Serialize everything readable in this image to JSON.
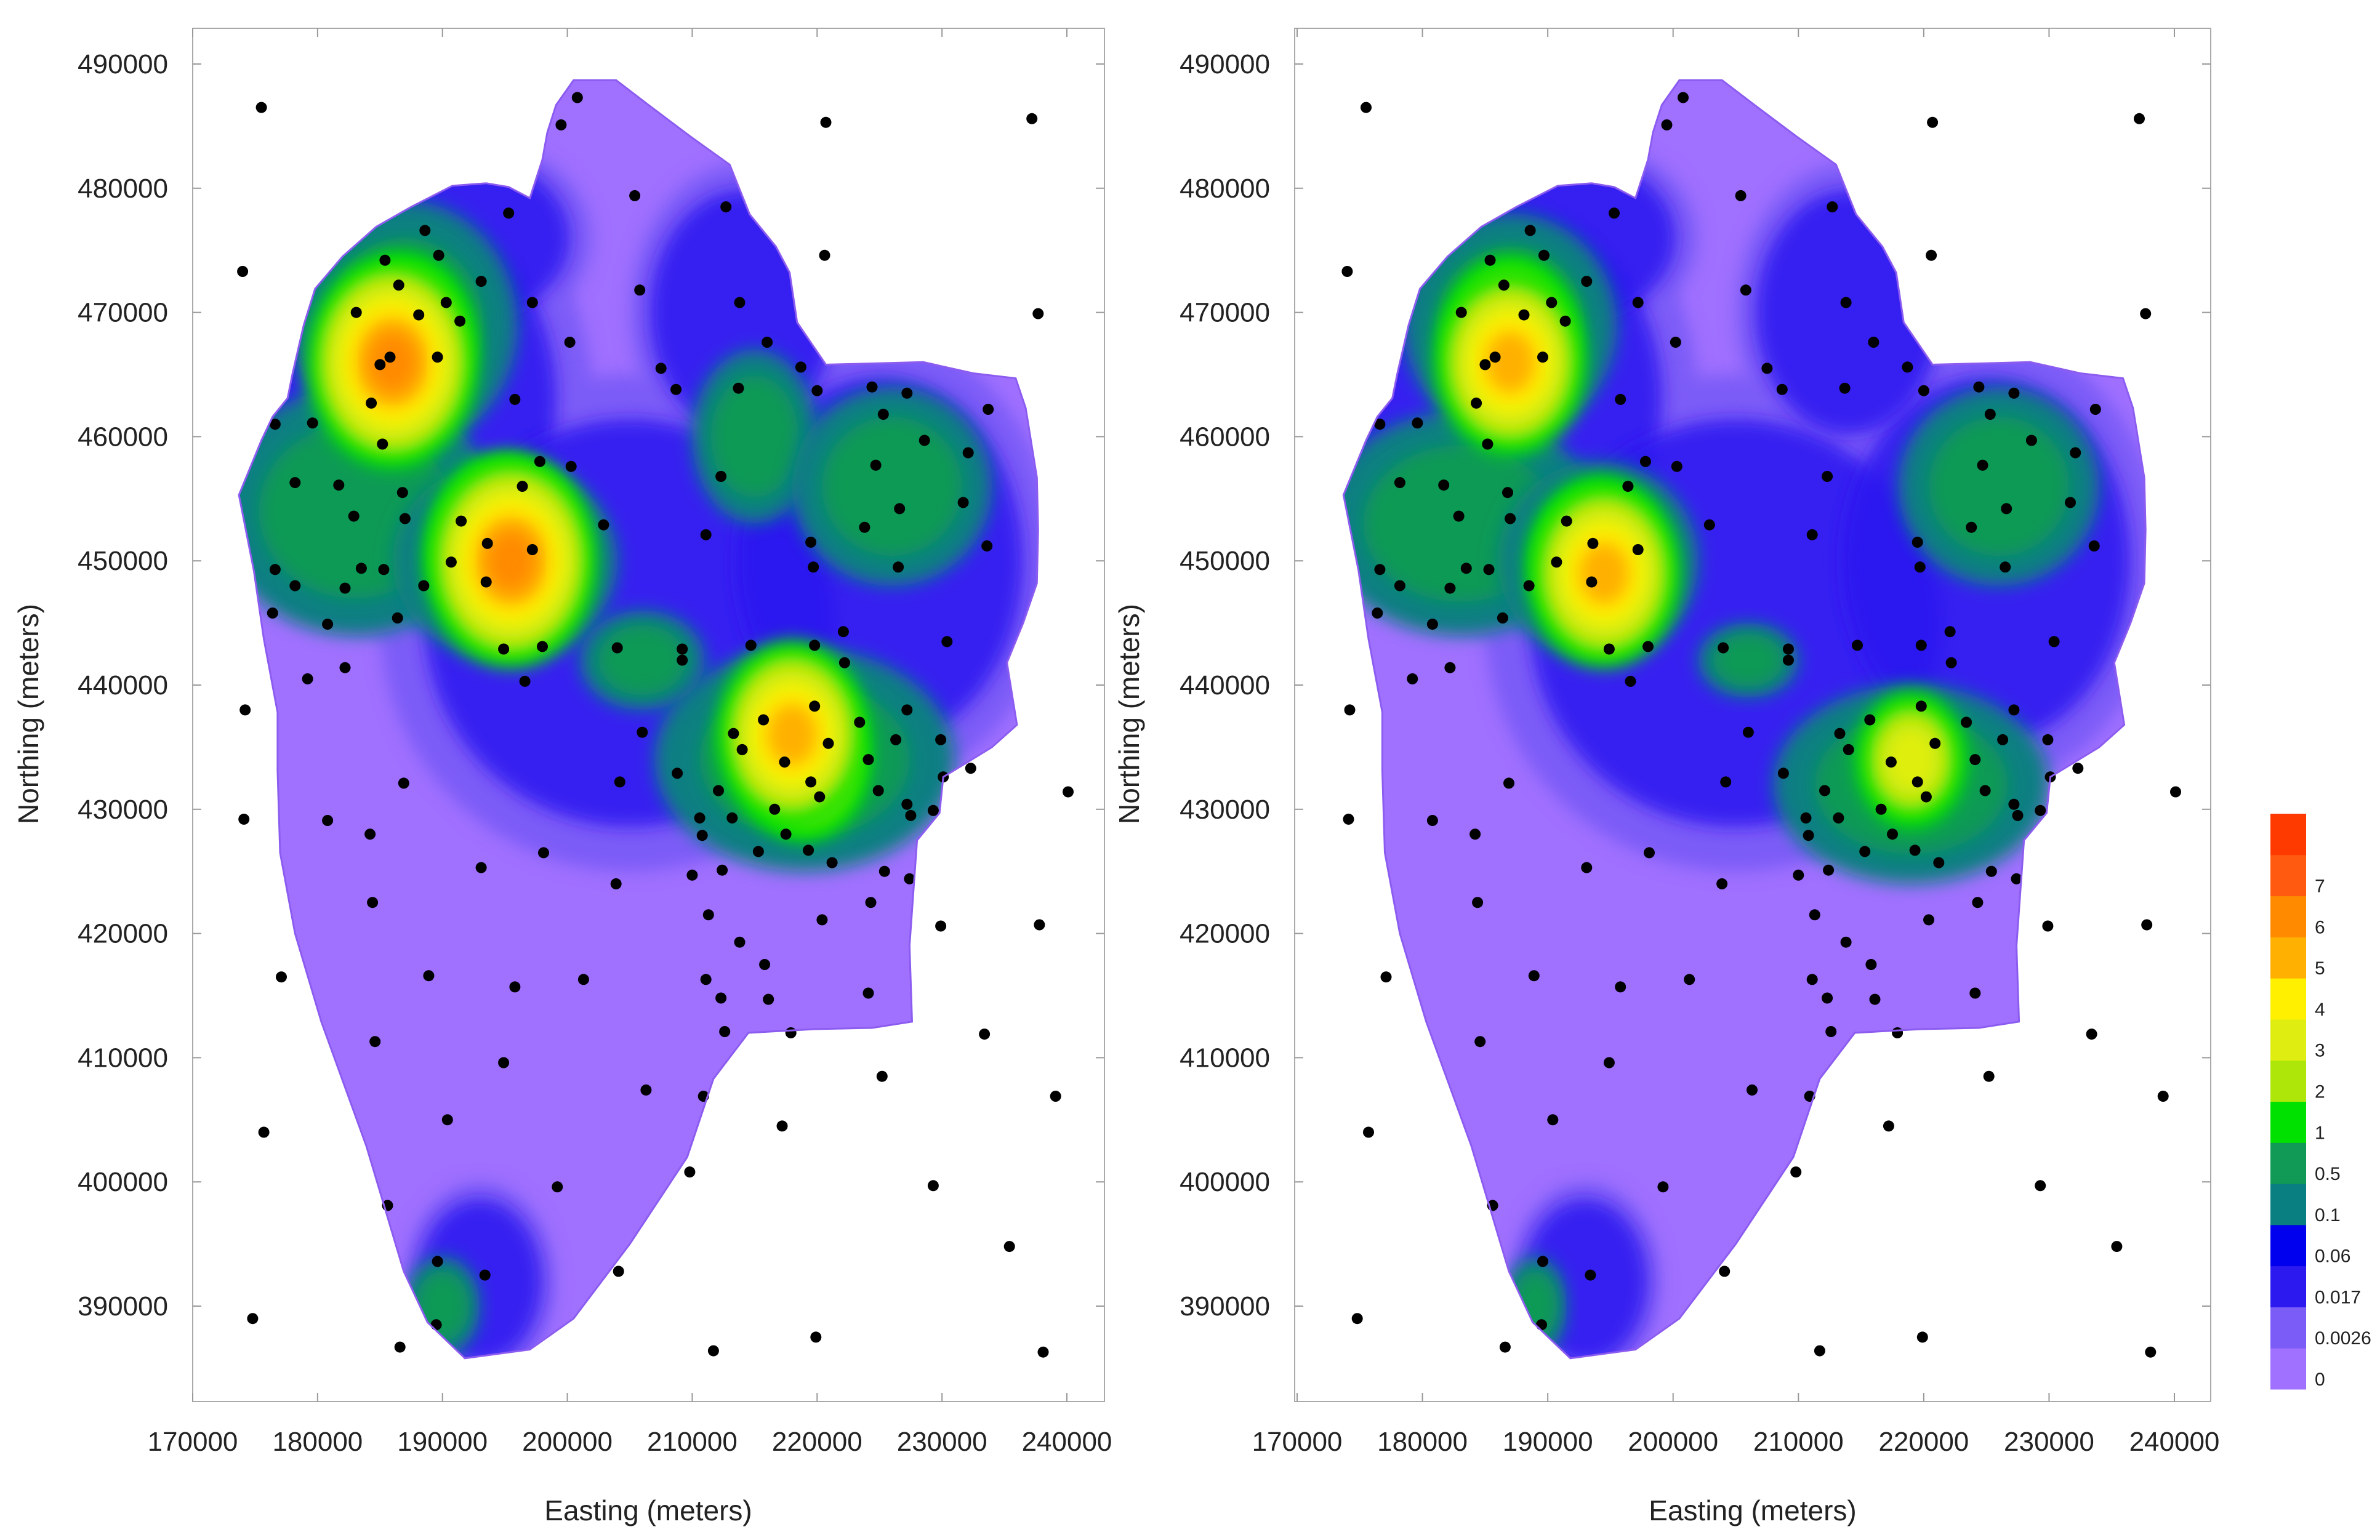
{
  "chart_data": [
    {
      "type": "contour",
      "panel": "left",
      "xlabel": "Easting (meters)",
      "ylabel": "Northing (meters)",
      "xlim": [
        170000,
        240000
      ],
      "ylim": [
        385000,
        490000
      ],
      "xticks": [
        170000,
        180000,
        190000,
        200000,
        210000,
        220000,
        230000,
        240000
      ],
      "yticks": [
        390000,
        400000,
        410000,
        420000,
        430000,
        440000,
        450000,
        460000,
        470000,
        480000,
        490000
      ],
      "hotspots": [
        {
          "x": 187000,
          "y": 468000,
          "level": 3
        },
        {
          "x": 195000,
          "y": 451000,
          "level": 4
        },
        {
          "x": 219000,
          "y": 434000,
          "level": 3
        },
        {
          "x": 186000,
          "y": 466000,
          "level": 5
        },
        {
          "x": 195500,
          "y": 450000,
          "level": 5
        },
        {
          "x": 218000,
          "y": 436000,
          "level": 4
        }
      ],
      "greens": [
        {
          "x": 187000,
          "y": 469000,
          "rx": 9000,
          "ry": 10000
        },
        {
          "x": 183000,
          "y": 454000,
          "rx": 11000,
          "ry": 10000
        },
        {
          "x": 195000,
          "y": 450000,
          "rx": 9000,
          "ry": 8000
        },
        {
          "x": 215000,
          "y": 460000,
          "rx": 5000,
          "ry": 7000
        },
        {
          "x": 226000,
          "y": 456000,
          "rx": 8000,
          "ry": 8000
        },
        {
          "x": 219000,
          "y": 434000,
          "rx": 12000,
          "ry": 9000
        },
        {
          "x": 206000,
          "y": 442000,
          "rx": 5000,
          "ry": 4000
        },
        {
          "x": 190000,
          "y": 390000,
          "rx": 3000,
          "ry": 4000
        }
      ]
    },
    {
      "type": "contour",
      "panel": "right",
      "xlabel": "Easting (meters)",
      "ylabel": "Northing (meters)",
      "xlim": [
        170000,
        240000
      ],
      "ylim": [
        385000,
        490000
      ],
      "xticks": [
        170000,
        180000,
        190000,
        200000,
        210000,
        220000,
        230000,
        240000
      ],
      "yticks": [
        390000,
        400000,
        410000,
        420000,
        430000,
        440000,
        450000,
        460000,
        470000,
        480000,
        490000
      ],
      "hotspots": [
        {
          "x": 187000,
          "y": 468000,
          "level": 3
        },
        {
          "x": 194000,
          "y": 450000,
          "level": 3
        },
        {
          "x": 219000,
          "y": 434000,
          "level": 2
        },
        {
          "x": 187000,
          "y": 466000,
          "level": 4
        },
        {
          "x": 194500,
          "y": 449000,
          "level": 4
        }
      ],
      "greens": [
        {
          "x": 187000,
          "y": 469000,
          "rx": 8500,
          "ry": 9000
        },
        {
          "x": 183000,
          "y": 453000,
          "rx": 11000,
          "ry": 9000
        },
        {
          "x": 194000,
          "y": 450000,
          "rx": 8000,
          "ry": 8000
        },
        {
          "x": 226000,
          "y": 456000,
          "rx": 8000,
          "ry": 8000
        },
        {
          "x": 219000,
          "y": 432000,
          "rx": 11000,
          "ry": 8000
        },
        {
          "x": 206000,
          "y": 442000,
          "rx": 4000,
          "ry": 3000
        },
        {
          "x": 189000,
          "y": 390000,
          "rx": 2500,
          "ry": 4000
        }
      ]
    }
  ],
  "legend": {
    "levels": [
      "0",
      "0.0026",
      "0.017",
      "0.06",
      "0.1",
      "0.5",
      "1",
      "2",
      "3",
      "4",
      "5",
      "6",
      "7"
    ],
    "colors": [
      "#a070ff",
      "#7b5cf7",
      "#2b19f0",
      "#0000ee",
      "#0a7f82",
      "#109a55",
      "#00e100",
      "#aee60a",
      "#dfee10",
      "#fff000",
      "#ffb000",
      "#ff8a00",
      "#ff5a10",
      "#ff3a00"
    ]
  },
  "stations": [
    [
      175500,
      486500
    ],
    [
      200800,
      487300
    ],
    [
      199500,
      485100
    ],
    [
      220700,
      485300
    ],
    [
      237200,
      485600
    ],
    [
      205400,
      479400
    ],
    [
      212700,
      478500
    ],
    [
      195300,
      478000
    ],
    [
      188600,
      476600
    ],
    [
      174000,
      473300
    ],
    [
      220600,
      474600
    ],
    [
      185400,
      474200
    ],
    [
      189700,
      474600
    ],
    [
      193100,
      472500
    ],
    [
      186500,
      472200
    ],
    [
      190300,
      470800
    ],
    [
      197200,
      470800
    ],
    [
      205800,
      471800
    ],
    [
      213800,
      470800
    ],
    [
      188100,
      469800
    ],
    [
      191400,
      469300
    ],
    [
      183100,
      470000
    ],
    [
      237700,
      469900
    ],
    [
      185800,
      466400
    ],
    [
      189600,
      466400
    ],
    [
      185000,
      465800
    ],
    [
      200200,
      467600
    ],
    [
      207500,
      465500
    ],
    [
      216000,
      467600
    ],
    [
      218700,
      465600
    ],
    [
      224400,
      464000
    ],
    [
      227200,
      463500
    ],
    [
      233700,
      462200
    ],
    [
      184300,
      462700
    ],
    [
      195800,
      463000
    ],
    [
      176600,
      461000
    ],
    [
      179600,
      461100
    ],
    [
      208700,
      463800
    ],
    [
      213700,
      463900
    ],
    [
      220000,
      463700
    ],
    [
      225300,
      461800
    ],
    [
      228600,
      459700
    ],
    [
      232100,
      458700
    ],
    [
      185200,
      459400
    ],
    [
      197800,
      458000
    ],
    [
      200300,
      457600
    ],
    [
      212300,
      456800
    ],
    [
      178200,
      456300
    ],
    [
      181700,
      456100
    ],
    [
      186800,
      455500
    ],
    [
      196400,
      456000
    ],
    [
      224700,
      457700
    ],
    [
      226600,
      454200
    ],
    [
      231700,
      454700
    ],
    [
      233600,
      451200
    ],
    [
      182900,
      453600
    ],
    [
      187000,
      453400
    ],
    [
      191500,
      453200
    ],
    [
      202900,
      452900
    ],
    [
      219500,
      451500
    ],
    [
      223800,
      452700
    ],
    [
      211100,
      452100
    ],
    [
      193600,
      451400
    ],
    [
      197200,
      450900
    ],
    [
      176600,
      449300
    ],
    [
      183500,
      449400
    ],
    [
      185300,
      449300
    ],
    [
      190700,
      449900
    ],
    [
      193500,
      448300
    ],
    [
      219700,
      449500
    ],
    [
      226500,
      449500
    ],
    [
      178200,
      448000
    ],
    [
      182200,
      447800
    ],
    [
      188500,
      448000
    ],
    [
      176400,
      445800
    ],
    [
      186400,
      445400
    ],
    [
      180800,
      444900
    ],
    [
      222100,
      444300
    ],
    [
      198000,
      443100
    ],
    [
      194900,
      442900
    ],
    [
      209200,
      442900
    ],
    [
      219800,
      443200
    ],
    [
      214700,
      443200
    ],
    [
      204000,
      443000
    ],
    [
      230400,
      443500
    ],
    [
      182200,
      441400
    ],
    [
      209200,
      442000
    ],
    [
      222200,
      441800
    ],
    [
      196600,
      440300
    ],
    [
      179200,
      440500
    ],
    [
      174200,
      438000
    ],
    [
      219800,
      438300
    ],
    [
      227200,
      438000
    ],
    [
      215700,
      437200
    ],
    [
      223400,
      437000
    ],
    [
      213300,
      436100
    ],
    [
      206000,
      436200
    ],
    [
      220900,
      435300
    ],
    [
      226300,
      435600
    ],
    [
      229900,
      435600
    ],
    [
      232300,
      433300
    ],
    [
      214000,
      434800
    ],
    [
      217400,
      433800
    ],
    [
      224100,
      434000
    ],
    [
      208800,
      432900
    ],
    [
      219500,
      432200
    ],
    [
      230100,
      432600
    ],
    [
      204200,
      432200
    ],
    [
      212100,
      431500
    ],
    [
      186900,
      432100
    ],
    [
      240100,
      431400
    ],
    [
      220200,
      431000
    ],
    [
      227200,
      430400
    ],
    [
      224900,
      431500
    ],
    [
      216600,
      430000
    ],
    [
      210600,
      429300
    ],
    [
      174100,
      429200
    ],
    [
      180800,
      429100
    ],
    [
      213200,
      429300
    ],
    [
      227500,
      429500
    ],
    [
      229300,
      429900
    ],
    [
      217500,
      428000
    ],
    [
      210800,
      427900
    ],
    [
      184200,
      428000
    ],
    [
      198100,
      426500
    ],
    [
      215300,
      426600
    ],
    [
      219300,
      426700
    ],
    [
      221200,
      425700
    ],
    [
      193100,
      425300
    ],
    [
      212400,
      425100
    ],
    [
      225400,
      425000
    ],
    [
      210000,
      424700
    ],
    [
      227400,
      424400
    ],
    [
      203900,
      424000
    ],
    [
      224300,
      422500
    ],
    [
      184400,
      422500
    ],
    [
      211300,
      421500
    ],
    [
      220400,
      421100
    ],
    [
      229900,
      420600
    ],
    [
      237800,
      420700
    ],
    [
      213800,
      419300
    ],
    [
      215800,
      417500
    ],
    [
      188900,
      416600
    ],
    [
      201300,
      416300
    ],
    [
      211100,
      416300
    ],
    [
      177100,
      416500
    ],
    [
      212300,
      414800
    ],
    [
      216100,
      414700
    ],
    [
      195800,
      415700
    ],
    [
      224100,
      415200
    ],
    [
      233400,
      411900
    ],
    [
      184600,
      411300
    ],
    [
      212600,
      412100
    ],
    [
      217900,
      412000
    ],
    [
      194900,
      409600
    ],
    [
      225200,
      408500
    ],
    [
      206300,
      407400
    ],
    [
      210900,
      406900
    ],
    [
      239100,
      406900
    ],
    [
      175700,
      404000
    ],
    [
      190400,
      405000
    ],
    [
      217200,
      404500
    ],
    [
      209800,
      400800
    ],
    [
      199200,
      399600
    ],
    [
      229300,
      399700
    ],
    [
      185600,
      398100
    ],
    [
      235400,
      394800
    ],
    [
      204100,
      392800
    ],
    [
      193400,
      392500
    ],
    [
      189600,
      393600
    ],
    [
      174800,
      389000
    ],
    [
      189500,
      388500
    ],
    [
      186600,
      386700
    ],
    [
      211700,
      386400
    ],
    [
      219900,
      387500
    ],
    [
      238100,
      386300
    ]
  ],
  "region": [
    [
      200500,
      488700
    ],
    [
      203900,
      488700
    ],
    [
      206500,
      486700
    ],
    [
      209800,
      484200
    ],
    [
      213000,
      481900
    ],
    [
      214600,
      477900
    ],
    [
      216700,
      475300
    ],
    [
      217800,
      473200
    ],
    [
      218400,
      469200
    ],
    [
      220700,
      465800
    ],
    [
      224900,
      465900
    ],
    [
      228500,
      466000
    ],
    [
      232500,
      465100
    ],
    [
      235900,
      464700
    ],
    [
      236700,
      462300
    ],
    [
      237600,
      456700
    ],
    [
      237700,
      452500
    ],
    [
      237600,
      448200
    ],
    [
      236500,
      445000
    ],
    [
      235200,
      441800
    ],
    [
      236000,
      436800
    ],
    [
      234000,
      435000
    ],
    [
      230100,
      432600
    ],
    [
      229800,
      429700
    ],
    [
      228000,
      427500
    ],
    [
      227400,
      419000
    ],
    [
      227600,
      412900
    ],
    [
      224400,
      412400
    ],
    [
      219800,
      412300
    ],
    [
      214500,
      412000
    ],
    [
      211700,
      408300
    ],
    [
      209600,
      402000
    ],
    [
      205000,
      395000
    ],
    [
      200500,
      389000
    ],
    [
      197000,
      386500
    ],
    [
      191800,
      385800
    ],
    [
      188800,
      388700
    ],
    [
      186900,
      392800
    ],
    [
      183900,
      402900
    ],
    [
      180300,
      412900
    ],
    [
      178200,
      420000
    ],
    [
      177000,
      426500
    ],
    [
      176800,
      433100
    ],
    [
      176800,
      437800
    ],
    [
      175700,
      443700
    ],
    [
      174900,
      449200
    ],
    [
      173700,
      455300
    ],
    [
      175500,
      459700
    ],
    [
      176400,
      461600
    ],
    [
      177600,
      463100
    ],
    [
      178000,
      465100
    ],
    [
      178900,
      469000
    ],
    [
      179800,
      471900
    ],
    [
      182000,
      474500
    ],
    [
      184700,
      476900
    ],
    [
      187500,
      478500
    ],
    [
      190800,
      480200
    ],
    [
      193500,
      480400
    ],
    [
      195300,
      480100
    ],
    [
      197000,
      479200
    ],
    [
      198000,
      482300
    ],
    [
      198400,
      484500
    ],
    [
      199100,
      486700
    ]
  ]
}
